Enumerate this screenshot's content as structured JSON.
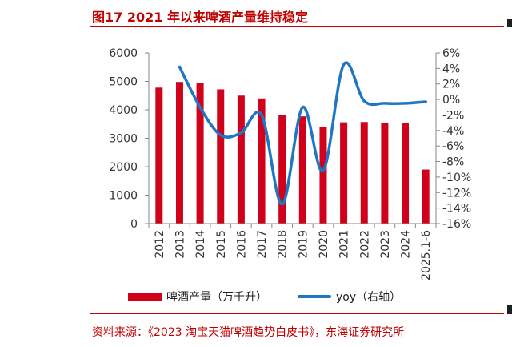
{
  "figure": {
    "title": "图17  2021 年以来啤酒产量维持稳定",
    "source": "资料来源：《2023 淘宝天猫啤酒趋势白皮书》，东海证券研究所"
  },
  "chart_data": {
    "type": "bar",
    "title": "",
    "xlabel": "",
    "ylabel": "",
    "categories": [
      "2012",
      "2013",
      "2014",
      "2015",
      "2016",
      "2017",
      "2018",
      "2019",
      "2020",
      "2021",
      "2022",
      "2023",
      "2024",
      "2025.1-6"
    ],
    "series": [
      {
        "name": "啤酒产量（万千升）",
        "type": "bar",
        "axis": "left",
        "color": "#d0021b",
        "values": [
          4780,
          4980,
          4930,
          4720,
          4500,
          4400,
          3810,
          3770,
          3410,
          3560,
          3570,
          3550,
          3520,
          1900
        ]
      },
      {
        "name": "yoy（右轴）",
        "type": "line",
        "axis": "right",
        "color": "#1f77c4",
        "values": [
          null,
          4.2,
          -1.0,
          -4.6,
          -4.3,
          -2.0,
          -13.5,
          -1.0,
          -9.2,
          4.5,
          -0.2,
          -0.5,
          -0.5,
          -0.3
        ]
      }
    ],
    "left_axis": {
      "min": 0,
      "max": 6000,
      "step": 1000
    },
    "right_axis": {
      "min": -16,
      "max": 6,
      "step": 2,
      "suffix": "%"
    },
    "grid": false,
    "legend_position": "bottom"
  }
}
